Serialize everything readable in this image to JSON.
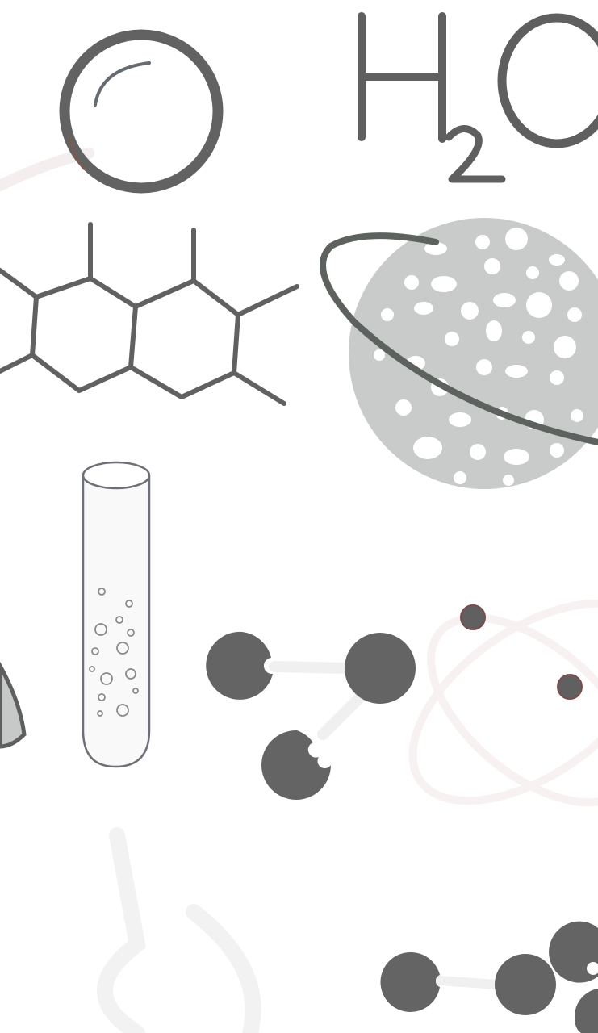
{
  "formula": {
    "main": "H",
    "subscript": "2",
    "tail": "O"
  },
  "palette": {
    "ink": "#616161",
    "dark_fill": "#646464",
    "planet_fill": "#c9cbca",
    "ring_stroke": "#5d625f",
    "faint_stroke": "#f3f3f3",
    "tube_stroke": "#6d7076"
  },
  "icons": [
    "ring-icon",
    "water-formula-icon",
    "hexagon-molecule-icon",
    "planet-icon",
    "test-tube-icon",
    "beaker-icon",
    "molecule-icon",
    "atom-icon",
    "flask-icon"
  ]
}
